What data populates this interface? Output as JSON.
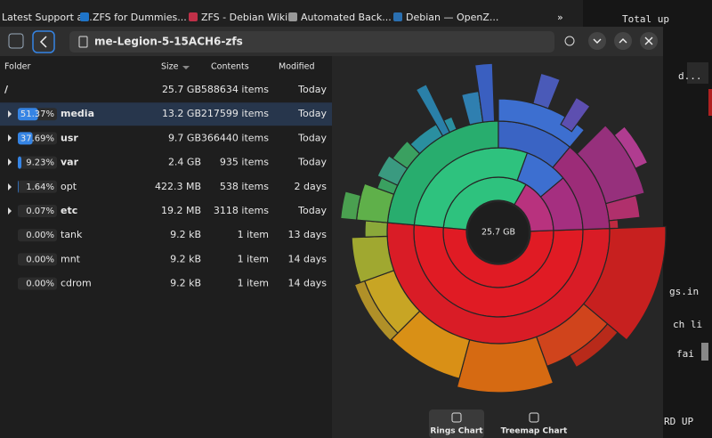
{
  "bookmarks": [
    "Latest Support a...",
    "ZFS for Dummies...",
    "ZFS - Debian Wiki",
    "Automated Back...",
    "Debian — OpenZ..."
  ],
  "terminal": [
    "Total up",
    "d...",
    "gs.in",
    "ch li",
    "fai",
    "RD UP"
  ],
  "header": {
    "title": "me-Legion-5-15ACH6-zfs"
  },
  "table": {
    "columns": [
      "Folder",
      "Size",
      "Contents",
      "Modified"
    ],
    "rows": [
      {
        "name": "/",
        "size": "25.7 GB",
        "contents": "588634 items",
        "modified": "Today",
        "color": "#f0b436"
      },
      {
        "percent": {
          "value": 51.37,
          "label": "51.37%"
        },
        "name": "media",
        "size": "13.2 GB",
        "contents": "217599 items",
        "modified": "Today",
        "color": "#f0b436"
      },
      {
        "percent": {
          "value": 37.69,
          "label": "37.69%"
        },
        "name": "usr",
        "size": "9.7 GB",
        "contents": "366440 items",
        "modified": "Today",
        "color": "#f0b436"
      },
      {
        "percent": {
          "value": 9.23,
          "label": "9.23%"
        },
        "name": "var",
        "size": "2.4 GB",
        "contents": "935 items",
        "modified": "Today",
        "color": "#f0b436"
      },
      {
        "percent": {
          "value": 1.64,
          "label": "1.64%"
        },
        "name": "opt",
        "size": "422.3 MB",
        "contents": "538 items",
        "modified": "2 days",
        "color": "#e8e8e8"
      },
      {
        "percent": {
          "value": 0.07,
          "label": "0.07%"
        },
        "name": "etc",
        "size": "19.2 MB",
        "contents": "3118 items",
        "modified": "Today",
        "color": "#f0b436"
      },
      {
        "percent": {
          "value": 0.0,
          "label": "0.00%"
        },
        "name": "tank",
        "size": "9.2 kB",
        "contents": "1 item",
        "modified": "13 days",
        "color": "#e8e8e8"
      },
      {
        "percent": {
          "value": 0.0,
          "label": "0.00%"
        },
        "name": "mnt",
        "size": "9.2 kB",
        "contents": "1 item",
        "modified": "14 days",
        "color": "#e8e8e8"
      },
      {
        "percent": {
          "value": 0.0,
          "label": "0.00%"
        },
        "name": "cdrom",
        "size": "9.2 kB",
        "contents": "1 item",
        "modified": "14 days",
        "color": "#e8e8e8"
      }
    ]
  },
  "chart": {
    "center_label": "25.7 GB"
  },
  "tabs": [
    "Rings Chart",
    "Treemap Chart"
  ]
}
